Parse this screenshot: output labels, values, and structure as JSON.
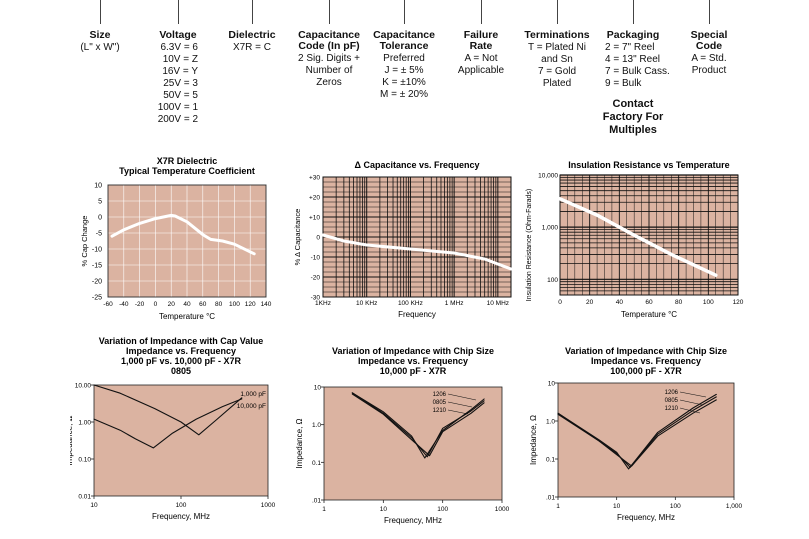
{
  "header": {
    "columns": [
      {
        "title": [
          "Size"
        ],
        "values": [
          "(L\" x W\")"
        ],
        "align": "center",
        "x": 100
      },
      {
        "title": [
          "Voltage"
        ],
        "values": [
          "6.3V = 6",
          "10V = Z",
          "16V = Y",
          "25V = 3",
          "50V = 5",
          "100V = 1",
          "200V = 2"
        ],
        "align": "right",
        "x": 178
      },
      {
        "title": [
          "Dielectric"
        ],
        "values": [
          "X7R = C"
        ],
        "align": "center",
        "x": 252
      },
      {
        "title": [
          "Capacitance",
          "Code (In pF)"
        ],
        "values": [
          "2 Sig. Digits +",
          "Number of",
          "Zeros"
        ],
        "align": "center",
        "x": 329
      },
      {
        "title": [
          "Capacitance",
          "Tolerance"
        ],
        "values": [
          "Preferred",
          "J = ± 5%",
          "K = ±10%",
          "M = ± 20%"
        ],
        "align": "center",
        "x": 404
      },
      {
        "title": [
          "Failure",
          "Rate"
        ],
        "values": [
          "A = Not",
          "Applicable"
        ],
        "align": "center",
        "x": 481
      },
      {
        "title": [
          "Terminations"
        ],
        "values": [
          "T = Plated Ni",
          "and Sn",
          "7 = Gold",
          "Plated"
        ],
        "align": "center",
        "x": 557
      },
      {
        "title": [
          "Packaging"
        ],
        "values": [
          "2 = 7\" Reel",
          "4 = 13\" Reel",
          "7 = Bulk Cass.",
          "9 = Bulk"
        ],
        "align": "left",
        "x": 633
      },
      {
        "title": [
          "Special",
          "Code"
        ],
        "values": [
          "A = Std.",
          "Product"
        ],
        "align": "center",
        "x": 709
      }
    ],
    "contact": [
      "Contact",
      "Factory For",
      "Multiples"
    ]
  },
  "charts": {
    "tc": {
      "title": [
        "X7R Dielectric",
        "Typical Temperature Coefficient"
      ],
      "xlabel": "Temperature °C",
      "ylabel": "% Cap Change",
      "xticks": [
        "-60",
        "-40",
        "-20",
        "0",
        "20",
        "40",
        "60",
        "80",
        "100",
        "120",
        "140"
      ],
      "yticks": [
        "10",
        "5",
        "0",
        "-5",
        "-10",
        "-15",
        "-20",
        "-25"
      ]
    },
    "capfreq": {
      "title": [
        "Δ Capacitance vs. Frequency"
      ],
      "xlabel": "Frequency",
      "ylabel": "% Δ Capacitance",
      "xticks": [
        "1KHz",
        "10 KHz",
        "100 KHz",
        "1 MHz",
        "10 MHz"
      ],
      "yticks": [
        "+30",
        "+20",
        "+10",
        "0",
        "-10",
        "-20",
        "-30"
      ]
    },
    "ir": {
      "title": [
        "Insulation Resistance vs Temperature"
      ],
      "xlabel": "Temperature °C",
      "ylabel": "Insulation Resistance (Ohm-Farads)",
      "xticks": [
        "0",
        "20",
        "40",
        "60",
        "80",
        "100",
        "120"
      ],
      "yticks": [
        "10,000",
        "1,000",
        "100"
      ]
    },
    "imp1": {
      "title": [
        "Variation of Impedance with Cap Value",
        "Impedance vs. Frequency",
        "1,000 pF vs. 10,000 pF - X7R",
        "0805"
      ],
      "xlabel": "Frequency, MHz",
      "ylabel": "Impedance, Ω",
      "xticks": [
        "10",
        "100",
        "1000"
      ],
      "yticks": [
        "10.00",
        "1.00",
        "0.10",
        "0.01"
      ],
      "series": [
        "1,000 pF",
        "10,000 pF"
      ]
    },
    "imp2": {
      "title": [
        "Variation of Impedance with Chip Size",
        "Impedance vs. Frequency",
        "10,000 pF - X7R"
      ],
      "xlabel": "Frequency, MHz",
      "ylabel": "Impedance, Ω",
      "xticks": [
        "1",
        "10",
        "100",
        "1000"
      ],
      "yticks": [
        "10",
        "1.0",
        "0.1",
        ".01"
      ],
      "series": [
        "1206",
        "0805",
        "1210"
      ]
    },
    "imp3": {
      "title": [
        "Variation of Impedance with Chip Size",
        "Impedance vs. Frequency",
        "100,000 pF - X7R"
      ],
      "xlabel": "Frequency, MHz",
      "ylabel": "Impedance, Ω",
      "xticks": [
        "1",
        "10",
        "100",
        "1,000"
      ],
      "yticks": [
        "10",
        "1.0",
        "0.1",
        ".01"
      ],
      "series": [
        "1206",
        "0805",
        "1210"
      ]
    }
  },
  "chart_data": [
    {
      "type": "line",
      "title": "X7R Dielectric Typical Temperature Coefficient",
      "xlabel": "Temperature °C",
      "ylabel": "% Cap Change",
      "xlim": [
        -60,
        140
      ],
      "ylim": [
        -25,
        10
      ],
      "series": [
        {
          "x": [
            -55,
            -40,
            -20,
            0,
            20,
            25,
            40,
            60,
            70,
            85,
            100,
            125
          ],
          "y": [
            -6,
            -4,
            -2,
            -0.5,
            0.5,
            0.3,
            -1.5,
            -5.5,
            -7,
            -7.5,
            -8.5,
            -11.5
          ]
        }
      ]
    },
    {
      "type": "line",
      "title": "Δ Capacitance vs. Frequency",
      "xlabel": "Frequency",
      "ylabel": "% Δ Capacitance",
      "xlim": [
        1000,
        20000000
      ],
      "ylim": [
        -30,
        30
      ],
      "series": [
        {
          "x": [
            1000,
            3000,
            10000,
            100000,
            1000000,
            5000000,
            20000000
          ],
          "y": [
            1,
            -2,
            -4,
            -6,
            -8,
            -11,
            -16
          ]
        }
      ]
    },
    {
      "type": "line",
      "title": "Insulation Resistance vs Temperature",
      "xlabel": "Temperature °C",
      "ylabel": "Insulation Resistance (Ohm-Farads)",
      "xlim": [
        0,
        120
      ],
      "ylim": [
        50,
        10000
      ],
      "yscale": "log",
      "series": [
        {
          "x": [
            0,
            25,
            50,
            75,
            105
          ],
          "y": [
            3500,
            1700,
            700,
            300,
            120
          ]
        }
      ]
    },
    {
      "type": "line",
      "title": "Variation of Impedance with Cap Value",
      "xlabel": "Frequency, MHz",
      "ylabel": "Impedance, Ω",
      "xlim": [
        10,
        1000
      ],
      "ylim": [
        0.01,
        10
      ],
      "xscale": "log",
      "yscale": "log",
      "series": [
        {
          "name": "1,000 pF",
          "x": [
            10,
            20,
            50,
            100,
            160,
            250,
            500
          ],
          "y": [
            12,
            6,
            2.3,
            1.0,
            0.45,
            1.1,
            4.5
          ]
        },
        {
          "name": "10,000 pF",
          "x": [
            10,
            20,
            30,
            48,
            80,
            150,
            300,
            500
          ],
          "y": [
            1.2,
            0.6,
            0.35,
            0.2,
            0.5,
            1.2,
            2.6,
            4.2
          ]
        }
      ]
    },
    {
      "type": "line",
      "title": "Variation of Impedance with Chip Size",
      "xlabel": "Frequency, MHz",
      "ylabel": "Impedance, Ω",
      "xlim": [
        1,
        1000
      ],
      "ylim": [
        0.01,
        10
      ],
      "xscale": "log",
      "yscale": "log",
      "series": [
        {
          "name": "1206",
          "x": [
            3,
            10,
            30,
            50,
            100,
            300,
            500
          ],
          "y": [
            7,
            2.2,
            0.5,
            0.13,
            0.7,
            2.5,
            4.8
          ]
        },
        {
          "name": "0805",
          "x": [
            3,
            10,
            30,
            55,
            100,
            300,
            500
          ],
          "y": [
            7,
            2,
            0.45,
            0.14,
            0.8,
            2.3,
            4.3
          ]
        },
        {
          "name": "1210",
          "x": [
            3,
            10,
            30,
            60,
            100,
            300,
            500
          ],
          "y": [
            6.5,
            1.9,
            0.4,
            0.15,
            0.65,
            2,
            3.8
          ]
        }
      ]
    },
    {
      "type": "line",
      "title": "Variation of Impedance with Chip Size",
      "xlabel": "Frequency, MHz",
      "ylabel": "Impedance, Ω",
      "xlim": [
        1,
        1000
      ],
      "ylim": [
        0.01,
        10
      ],
      "xscale": "log",
      "yscale": "log",
      "series": [
        {
          "name": "1206",
          "x": [
            1,
            5,
            10,
            16,
            50,
            200,
            500
          ],
          "y": [
            1.6,
            0.32,
            0.15,
            0.055,
            0.5,
            2.2,
            5
          ]
        },
        {
          "name": "0805",
          "x": [
            1,
            5,
            10,
            17,
            50,
            200,
            500
          ],
          "y": [
            1.6,
            0.3,
            0.14,
            0.06,
            0.45,
            1.9,
            4.3
          ]
        },
        {
          "name": "1210",
          "x": [
            1,
            5,
            10,
            18,
            50,
            200,
            500
          ],
          "y": [
            1.5,
            0.3,
            0.13,
            0.065,
            0.4,
            1.6,
            3.6
          ]
        }
      ]
    }
  ]
}
